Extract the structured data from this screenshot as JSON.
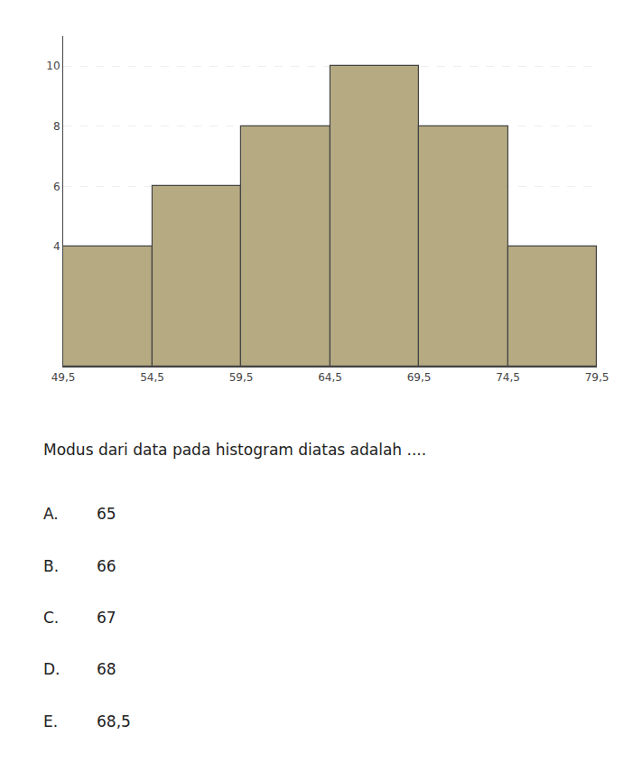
{
  "chart_data": {
    "type": "histogram",
    "bins": [
      49.5,
      54.5,
      59.5,
      64.5,
      69.5,
      74.5,
      79.5
    ],
    "values": [
      4,
      6,
      8,
      10,
      8,
      4
    ],
    "color": "#b5aa82",
    "xlim": [
      49.5,
      79.5
    ],
    "xticks": [
      {
        "value": 49.5,
        "label": "49,5"
      },
      {
        "value": 54.5,
        "label": "54,5"
      },
      {
        "value": 59.5,
        "label": "59,5"
      },
      {
        "value": 64.5,
        "label": "64,5"
      },
      {
        "value": 69.5,
        "label": "69,5"
      },
      {
        "value": 74.5,
        "label": "74,5"
      },
      {
        "value": 79.5,
        "label": "79,5"
      }
    ],
    "ylim": [
      0,
      11
    ],
    "yticks": [
      4,
      6,
      8,
      10
    ],
    "grid": true,
    "annotations": [
      [
        "Modus dari data pada histogram diatas adalah ...."
      ],
      [
        "A.",
        "65"
      ],
      [
        "B.",
        "66"
      ],
      [
        "C.",
        "67"
      ],
      [
        "D.",
        "68"
      ],
      [
        "E.",
        "68,5"
      ]
    ]
  }
}
